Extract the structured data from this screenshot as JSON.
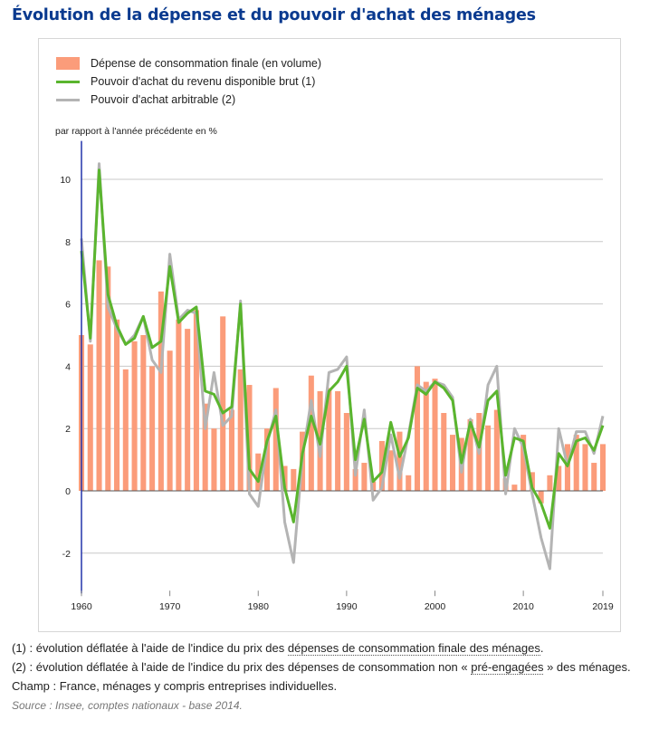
{
  "title": "Évolution de la dépense et du pouvoir d'achat des ménages",
  "legend": {
    "bar": "Dépense de consommation finale (en volume)",
    "green": "Pouvoir d'achat du revenu disponible brut (1)",
    "gray": "Pouvoir d'achat arbitrable (2)"
  },
  "unit_label": "par rapport à l'année précédente en %",
  "notes": {
    "note1_pre": "(1) : évolution déflatée à l'aide de l'indice du prix des ",
    "note1_link": "dépenses de consommation finale des ménages",
    "note1_post": ".",
    "note2_pre": "(2) : évolution déflatée à l'aide de l'indice du prix des dépenses de consommation non « ",
    "note2_link": "pré-engagées",
    "note2_post": " » des ménages.",
    "champ": "Champ : France, ménages y compris entreprises individuelles.",
    "source": "Source : Insee, comptes nationaux - base 2014."
  },
  "colors": {
    "bar": "#fb9c7a",
    "green": "#5ab52e",
    "gray": "#b4b4b4",
    "axis": "#2233aa",
    "grid": "#c8c8c8"
  },
  "chart_data": {
    "type": "bar+line",
    "ylabel": "par rapport à l'année précédente en %",
    "ylim": [
      -3,
      11
    ],
    "yticks": [
      -2,
      0,
      2,
      4,
      6,
      8,
      10
    ],
    "xticks": [
      1960,
      1970,
      1980,
      1990,
      2000,
      2010,
      2019
    ],
    "grid": true,
    "legend_position": "top-left",
    "x": [
      1960,
      1961,
      1962,
      1963,
      1964,
      1965,
      1966,
      1967,
      1968,
      1969,
      1970,
      1971,
      1972,
      1973,
      1974,
      1975,
      1976,
      1977,
      1978,
      1979,
      1980,
      1981,
      1982,
      1983,
      1984,
      1985,
      1986,
      1987,
      1988,
      1989,
      1990,
      1991,
      1992,
      1993,
      1994,
      1995,
      1996,
      1997,
      1998,
      1999,
      2000,
      2001,
      2002,
      2003,
      2004,
      2005,
      2006,
      2007,
      2008,
      2009,
      2010,
      2011,
      2012,
      2013,
      2014,
      2015,
      2016,
      2017,
      2018,
      2019
    ],
    "series": [
      {
        "name": "Dépense de consommation finale (en volume)",
        "kind": "bar",
        "values": [
          5.0,
          4.7,
          7.4,
          7.2,
          5.5,
          3.9,
          4.8,
          5.0,
          4.0,
          6.4,
          4.5,
          5.5,
          5.2,
          5.8,
          2.8,
          2.0,
          5.6,
          2.6,
          3.9,
          3.4,
          1.2,
          2.0,
          3.3,
          0.8,
          0.7,
          1.9,
          3.7,
          3.2,
          3.3,
          3.2,
          2.5,
          0.7,
          0.9,
          0.3,
          1.6,
          1.3,
          1.9,
          0.5,
          4.0,
          3.5,
          3.6,
          2.5,
          1.8,
          1.7,
          2.3,
          2.5,
          2.1,
          2.6,
          0.4,
          0.2,
          1.8,
          0.6,
          -0.4,
          0.5,
          0.8,
          1.5,
          1.8,
          1.5,
          0.9,
          1.5
        ]
      },
      {
        "name": "Pouvoir d'achat du revenu disponible brut (1)",
        "kind": "line",
        "values": [
          7.7,
          4.9,
          10.3,
          6.3,
          5.3,
          4.7,
          4.9,
          5.6,
          4.6,
          4.8,
          7.2,
          5.4,
          5.7,
          5.9,
          3.2,
          3.1,
          2.5,
          2.7,
          6.0,
          0.7,
          0.3,
          1.6,
          2.4,
          0.1,
          -1.0,
          1.2,
          2.4,
          1.5,
          3.2,
          3.5,
          4.0,
          1.0,
          2.3,
          0.3,
          0.6,
          2.2,
          1.1,
          1.7,
          3.3,
          3.1,
          3.5,
          3.3,
          2.9,
          0.9,
          2.2,
          1.4,
          2.9,
          3.2,
          0.5,
          1.7,
          1.6,
          0.1,
          -0.4,
          -1.2,
          1.2,
          0.8,
          1.6,
          1.7,
          1.3,
          2.1
        ]
      },
      {
        "name": "Pouvoir d'achat arbitrable (2)",
        "kind": "line",
        "values": [
          8.1,
          4.8,
          10.5,
          5.9,
          5.2,
          4.7,
          5.0,
          5.6,
          4.2,
          3.8,
          7.6,
          5.5,
          5.8,
          5.7,
          2.0,
          3.8,
          2.1,
          2.4,
          6.1,
          -0.1,
          -0.5,
          1.5,
          2.6,
          -1.0,
          -2.3,
          1.1,
          2.9,
          1.1,
          3.8,
          3.9,
          4.3,
          0.5,
          2.6,
          -0.3,
          0.1,
          1.8,
          0.4,
          1.8,
          3.4,
          3.2,
          3.5,
          3.4,
          3.0,
          0.6,
          2.3,
          1.2,
          3.4,
          4.0,
          -0.1,
          2.0,
          1.4,
          -0.1,
          -1.5,
          -2.5,
          2.0,
          0.8,
          1.9,
          1.9,
          1.2,
          2.4
        ]
      }
    ]
  }
}
